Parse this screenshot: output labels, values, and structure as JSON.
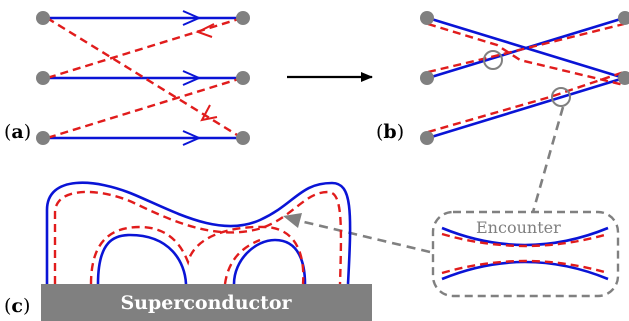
{
  "panels": {
    "a": {
      "label_open": "(",
      "label_letter": "a",
      "label_close": ")"
    },
    "b": {
      "label_open": "(",
      "label_letter": "b",
      "label_close": ")"
    },
    "c": {
      "label_open": "(",
      "label_letter": "c",
      "label_close": ")"
    }
  },
  "superconductor": {
    "label": "Superconductor"
  },
  "encounter": {
    "label": "Encounter"
  },
  "colors": {
    "blue": "#0a14d6",
    "red": "#e11c1c",
    "gray_dot": "#808080",
    "gray_dash": "#808080",
    "superconductor_fill": "#808080",
    "black": "#000000"
  }
}
